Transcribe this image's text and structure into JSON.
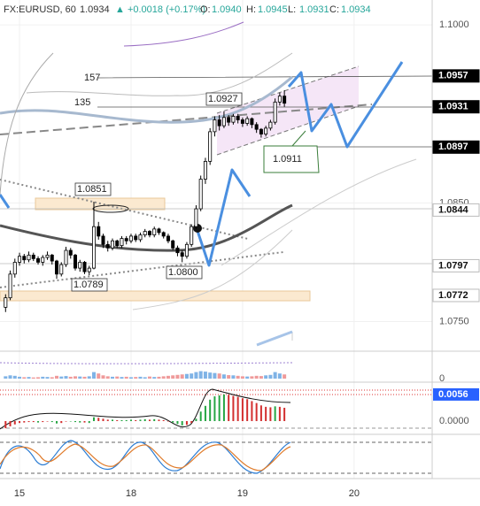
{
  "chart_data": {
    "type": "candlestick",
    "header": {
      "symbol": "FX:EURUSD, 60",
      "last": {
        "value": 1.0934,
        "label": "1.0934"
      },
      "change": "+0.0018 (+0.17%)",
      "ohlc": [
        {
          "name": "O:",
          "value": 1.094,
          "label": "1.0940"
        },
        {
          "name": "H:",
          "value": 1.0945
        },
        {
          "name": "L:",
          "value": 1.0931
        },
        {
          "name": "C:",
          "value": 1.0934
        }
      ]
    },
    "xlim": [
      -4.2,
      88.8
    ],
    "xticks": [
      {
        "value": 0,
        "label": "15"
      },
      {
        "value": 24,
        "label": "18"
      },
      {
        "value": 48,
        "label": "19"
      },
      {
        "value": 72,
        "label": "20"
      }
    ],
    "ylim": [
      1.0725,
      1.1021
    ],
    "yticks": [
      {
        "value": 1.1,
        "label": "1.1000"
      },
      {
        "value": 1.085,
        "label": "1.0850"
      },
      {
        "value": 1.075,
        "label": "1.0750"
      }
    ],
    "grid": true,
    "up_color": "#ffffff",
    "down_color": "#000000",
    "x": [
      -3,
      -2,
      -1,
      0,
      1,
      2,
      3,
      4,
      5,
      6,
      7,
      8,
      9,
      10,
      11,
      12,
      13,
      14,
      15,
      16,
      17,
      18,
      19,
      20,
      21,
      22,
      23,
      24,
      25,
      26,
      27,
      28,
      29,
      30,
      31,
      32,
      33,
      34,
      35,
      36,
      37,
      38,
      39,
      40,
      41,
      42,
      43,
      44,
      45,
      46,
      47,
      48,
      49,
      50,
      51,
      52,
      53,
      54,
      55,
      56,
      57
    ],
    "open": [
      1.0762,
      1.077,
      1.079,
      1.08,
      1.0805,
      1.0802,
      1.0806,
      1.0803,
      1.08,
      1.0804,
      1.0806,
      1.0801,
      1.079,
      1.0798,
      1.081,
      1.0806,
      1.0795,
      1.08,
      1.0792,
      1.0795,
      1.083,
      1.0822,
      1.0815,
      1.0812,
      1.0818,
      1.0814,
      1.082,
      1.0818,
      1.0822,
      1.0819,
      1.0823,
      1.0826,
      1.0823,
      1.0828,
      1.0825,
      1.0822,
      1.0818,
      1.0812,
      1.0808,
      1.0805,
      1.0815,
      1.083,
      1.0845,
      1.087,
      1.0885,
      1.091,
      1.092,
      1.0915,
      1.0922,
      1.0918,
      1.0923,
      1.092,
      1.0917,
      1.0921,
      1.0916,
      1.0912,
      1.0908,
      1.0913,
      1.0918,
      1.0935,
      1.094
    ],
    "high": [
      1.0773,
      1.0793,
      1.0803,
      1.0808,
      1.0807,
      1.0809,
      1.0808,
      1.0805,
      1.0806,
      1.0809,
      1.0807,
      1.0802,
      1.08,
      1.0813,
      1.0812,
      1.0807,
      1.0802,
      1.0801,
      1.0797,
      1.0851,
      1.0834,
      1.0824,
      1.0818,
      1.082,
      1.0819,
      1.0822,
      1.0822,
      1.0824,
      1.0824,
      1.0825,
      1.0828,
      1.0827,
      1.083,
      1.0829,
      1.0826,
      1.0824,
      1.0819,
      1.0814,
      1.081,
      1.0817,
      1.0832,
      1.0848,
      1.0873,
      1.0888,
      1.0913,
      1.0923,
      1.0924,
      1.0927,
      1.0924,
      1.0925,
      1.0925,
      1.0922,
      1.0923,
      1.0922,
      1.0918,
      1.0913,
      1.0915,
      1.092,
      1.0938,
      1.0943,
      1.0945
    ],
    "low": [
      1.0758,
      1.0768,
      1.0787,
      1.0797,
      1.0799,
      1.08,
      1.0801,
      1.0798,
      1.0797,
      1.0802,
      1.0798,
      1.0786,
      1.0788,
      1.0796,
      1.0803,
      1.0793,
      1.0792,
      1.079,
      1.0789,
      1.0794,
      1.0819,
      1.0812,
      1.0809,
      1.081,
      1.0812,
      1.0812,
      1.0815,
      1.0816,
      1.0817,
      1.0817,
      1.0821,
      1.0821,
      1.0821,
      1.0823,
      1.082,
      1.0816,
      1.081,
      1.0805,
      1.08,
      1.0803,
      1.0813,
      1.0828,
      1.0843,
      1.0866,
      1.0882,
      1.0906,
      1.0911,
      1.0913,
      1.0915,
      1.0916,
      1.0917,
      1.0914,
      1.0915,
      1.0913,
      1.0909,
      1.0905,
      1.0906,
      1.0911,
      1.0916,
      1.0932,
      1.0931
    ],
    "close": [
      1.077,
      1.079,
      1.08,
      1.0805,
      1.0802,
      1.0806,
      1.0803,
      1.08,
      1.0804,
      1.0806,
      1.0801,
      1.079,
      1.0798,
      1.081,
      1.0806,
      1.0795,
      1.08,
      1.0792,
      1.0795,
      1.083,
      1.0822,
      1.0815,
      1.0812,
      1.0818,
      1.0814,
      1.082,
      1.0818,
      1.0822,
      1.0819,
      1.0823,
      1.0826,
      1.0823,
      1.0828,
      1.0825,
      1.0822,
      1.0818,
      1.0812,
      1.0808,
      1.0805,
      1.0815,
      1.083,
      1.0845,
      1.087,
      1.0885,
      1.091,
      1.092,
      1.0915,
      1.0922,
      1.0918,
      1.0923,
      1.092,
      1.0917,
      1.0921,
      1.0916,
      1.0912,
      1.0908,
      1.0913,
      1.0918,
      1.0935,
      1.094,
      1.0934
    ],
    "price_tags": [
      {
        "value": 1.0957,
        "color": "#000000"
      },
      {
        "value": 1.0931,
        "color": "#000000"
      },
      {
        "value": 1.0897,
        "color": "#000000"
      },
      {
        "value": 1.0844,
        "color": "#ffffff"
      },
      {
        "value": 1.0797,
        "color": "#ffffff"
      },
      {
        "value": 1.0772,
        "color": "#ffffff"
      }
    ],
    "annotations": [
      {
        "value": 157
      },
      {
        "value": 135
      },
      {
        "value": 1.0927
      },
      {
        "value": 1.0851
      },
      {
        "value": 1.0789
      },
      {
        "value": 1.08,
        "label": "1.0800"
      },
      {
        "value": 1.0911
      }
    ],
    "volume": {
      "ylim": [
        0,
        110
      ],
      "yticks": [
        0
      ],
      "values": [
        10,
        14,
        12,
        8,
        6,
        7,
        5,
        6,
        8,
        7,
        6,
        12,
        9,
        11,
        8,
        10,
        9,
        8,
        10,
        28,
        22,
        14,
        10,
        8,
        9,
        7,
        8,
        6,
        7,
        8,
        6,
        9,
        7,
        8,
        10,
        12,
        14,
        16,
        18,
        20,
        22,
        28,
        32,
        30,
        26,
        24,
        22,
        18,
        15,
        14,
        12,
        10,
        9,
        10,
        12,
        11,
        14,
        16,
        28,
        22,
        18
      ]
    },
    "macd": {
      "ylim": [
        -0.0026,
        0.008
      ],
      "yticks": [
        {
          "value": 0,
          "label": "0.0000"
        }
      ],
      "tag": {
        "value": 0.0056,
        "color": "#2962ff"
      },
      "values": [
        -0.0015,
        -0.0011,
        -0.0007,
        -0.0004,
        -0.0003,
        -0.0002,
        -0.0002,
        -0.0003,
        -0.0002,
        -0.0001,
        -0.0002,
        -0.0005,
        -0.0004,
        -0.0001,
        0,
        -0.0002,
        -0.0003,
        -0.0003,
        -0.0004,
        0.0008,
        0.0007,
        0.0005,
        0.0003,
        0.0003,
        0.0002,
        0.0002,
        0.0002,
        0.0003,
        0.0002,
        0.0003,
        0.0004,
        0.0003,
        0.0004,
        0.0003,
        0.0002,
        0,
        -0.0003,
        -0.0006,
        -0.0009,
        -0.0008,
        -0.0004,
        0.0005,
        0.002,
        0.0032,
        0.0045,
        0.0052,
        0.0054,
        0.0056,
        0.0055,
        0.0053,
        0.0051,
        0.0048,
        0.0046,
        0.0042,
        0.0038,
        0.0033,
        0.003,
        0.0029,
        0.0031,
        0.003,
        0.0028
      ]
    }
  }
}
